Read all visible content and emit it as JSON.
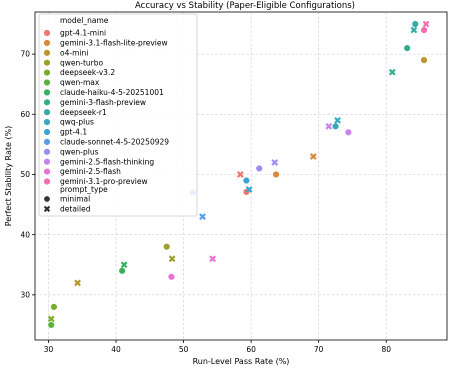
{
  "chart_data": {
    "type": "scatter",
    "title": "Accuracy vs Stability (Paper-Eligible Configurations)",
    "xlabel": "Run-Level Pass Rate (%)",
    "ylabel": "Perfect Stability Rate (%)",
    "xlim": [
      28,
      89
    ],
    "ylim": [
      22.5,
      77
    ],
    "xticks": [
      30,
      40,
      50,
      60,
      70,
      80
    ],
    "yticks": [
      30,
      40,
      50,
      60,
      70
    ],
    "grid": true,
    "legend_placement": "top-left",
    "hue_title": "model_name",
    "style_title": "prompt_type",
    "styles": [
      {
        "name": "minimal",
        "marker": "circle"
      },
      {
        "name": "detailed",
        "marker": "x"
      }
    ],
    "series": [
      {
        "name": "gpt-4.1-mini",
        "color": "#f0766f",
        "points": [
          {
            "x": 59.3,
            "y": 47.1,
            "style": "minimal"
          },
          {
            "x": 58.4,
            "y": 50.0,
            "style": "detailed"
          }
        ]
      },
      {
        "name": "gemini-3.1-flash-lite-preview",
        "color": "#db8839",
        "points": [
          {
            "x": 63.7,
            "y": 50.0,
            "style": "minimal"
          },
          {
            "x": 69.2,
            "y": 53.0,
            "style": "detailed"
          }
        ]
      },
      {
        "name": "o4-mini",
        "color": "#b9952b",
        "points": [
          {
            "x": 85.6,
            "y": 69.0,
            "style": "minimal"
          },
          {
            "x": 34.3,
            "y": 32.0,
            "style": "detailed"
          }
        ]
      },
      {
        "name": "qwen-turbo",
        "color": "#9ba12a",
        "points": [
          {
            "x": 47.5,
            "y": 38.0,
            "style": "minimal"
          },
          {
            "x": 48.3,
            "y": 36.0,
            "style": "detailed"
          }
        ]
      },
      {
        "name": "deepseek-v3.2",
        "color": "#7aad2d",
        "points": [
          {
            "x": 30.8,
            "y": 28.0,
            "style": "minimal"
          },
          {
            "x": 30.4,
            "y": 26.0,
            "style": "detailed"
          }
        ]
      },
      {
        "name": "qwen-max",
        "color": "#5bb23c",
        "points": [
          {
            "x": 30.4,
            "y": 25.0,
            "style": "minimal"
          }
        ]
      },
      {
        "name": "claude-haiku-4-5-20251001",
        "color": "#36b15f",
        "points": [
          {
            "x": 40.9,
            "y": 34.0,
            "style": "minimal"
          },
          {
            "x": 41.2,
            "y": 35.0,
            "style": "detailed"
          }
        ]
      },
      {
        "name": "gemini-3-flash-preview",
        "color": "#33ae8c",
        "points": [
          {
            "x": 83.1,
            "y": 71.0,
            "style": "minimal"
          },
          {
            "x": 80.9,
            "y": 67.0,
            "style": "detailed"
          }
        ]
      },
      {
        "name": "deepseek-r1",
        "color": "#34aba6",
        "points": [
          {
            "x": 84.3,
            "y": 75.0,
            "style": "minimal"
          },
          {
            "x": 84.1,
            "y": 74.0,
            "style": "detailed"
          }
        ]
      },
      {
        "name": "qwq-plus",
        "color": "#37a9bd",
        "points": [
          {
            "x": 72.5,
            "y": 58.0,
            "style": "minimal"
          },
          {
            "x": 72.8,
            "y": 59.0,
            "style": "detailed"
          }
        ]
      },
      {
        "name": "gpt-4.1",
        "color": "#3aa5d4",
        "points": [
          {
            "x": 59.3,
            "y": 49.0,
            "style": "minimal"
          },
          {
            "x": 59.7,
            "y": 47.5,
            "style": "detailed"
          }
        ]
      },
      {
        "name": "claude-sonnet-4-5-20250929",
        "color": "#5b9de9",
        "points": [
          {
            "x": 51.4,
            "y": 47.0,
            "style": "minimal"
          },
          {
            "x": 52.8,
            "y": 43.0,
            "style": "detailed"
          }
        ]
      },
      {
        "name": "qwen-plus",
        "color": "#9b8ef0",
        "points": [
          {
            "x": 61.2,
            "y": 51.0,
            "style": "minimal"
          },
          {
            "x": 63.5,
            "y": 52.0,
            "style": "detailed"
          }
        ]
      },
      {
        "name": "gemini-2.5-flash-thinking",
        "color": "#c882ed",
        "points": [
          {
            "x": 74.4,
            "y": 57.0,
            "style": "minimal"
          },
          {
            "x": 71.5,
            "y": 58.0,
            "style": "detailed"
          }
        ]
      },
      {
        "name": "gemini-2.5-flash",
        "color": "#ea72d6",
        "points": [
          {
            "x": 48.2,
            "y": 33.0,
            "style": "minimal"
          },
          {
            "x": 54.3,
            "y": 36.0,
            "style": "detailed"
          }
        ]
      },
      {
        "name": "gemini-3.1-pro-preview",
        "color": "#f66bae",
        "points": [
          {
            "x": 85.6,
            "y": 74.0,
            "style": "minimal"
          },
          {
            "x": 85.9,
            "y": 75.0,
            "style": "detailed"
          }
        ]
      }
    ]
  }
}
